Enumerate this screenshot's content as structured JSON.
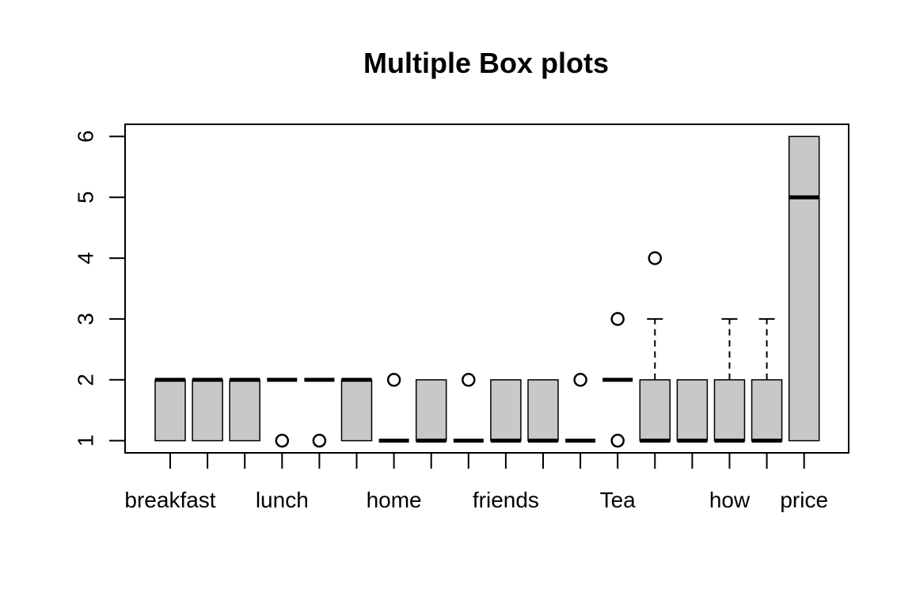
{
  "chart_data": {
    "type": "boxplot",
    "title": "Multiple Box plots",
    "xlabel": "",
    "ylabel": "",
    "ylim": [
      0.8,
      6.2
    ],
    "yticks": [
      1,
      2,
      3,
      4,
      5,
      6
    ],
    "box_fill": "#c8c8c8",
    "x_tick_labels": [
      {
        "position": 1,
        "text": "breakfast"
      },
      {
        "position": 4,
        "text": "lunch"
      },
      {
        "position": 7,
        "text": "home"
      },
      {
        "position": 10,
        "text": "friends"
      },
      {
        "position": 13,
        "text": "Tea"
      },
      {
        "position": 16,
        "text": "how"
      },
      {
        "position": 18,
        "text": "price"
      }
    ],
    "boxes": [
      {
        "position": 1,
        "min": 1,
        "q1": 1,
        "median": 2,
        "q3": 2,
        "max": 2,
        "outliers": []
      },
      {
        "position": 2,
        "min": 1,
        "q1": 1,
        "median": 2,
        "q3": 2,
        "max": 2,
        "outliers": []
      },
      {
        "position": 3,
        "min": 1,
        "q1": 1,
        "median": 2,
        "q3": 2,
        "max": 2,
        "outliers": []
      },
      {
        "position": 4,
        "min": 2,
        "q1": 2,
        "median": 2,
        "q3": 2,
        "max": 2,
        "outliers": [
          1
        ]
      },
      {
        "position": 5,
        "min": 2,
        "q1": 2,
        "median": 2,
        "q3": 2,
        "max": 2,
        "outliers": [
          1
        ]
      },
      {
        "position": 6,
        "min": 1,
        "q1": 1,
        "median": 2,
        "q3": 2,
        "max": 2,
        "outliers": []
      },
      {
        "position": 7,
        "min": 1,
        "q1": 1,
        "median": 1,
        "q3": 1,
        "max": 1,
        "outliers": [
          2
        ]
      },
      {
        "position": 8,
        "min": 1,
        "q1": 1,
        "median": 1,
        "q3": 2,
        "max": 2,
        "outliers": []
      },
      {
        "position": 9,
        "min": 1,
        "q1": 1,
        "median": 1,
        "q3": 1,
        "max": 1,
        "outliers": [
          2
        ]
      },
      {
        "position": 10,
        "min": 1,
        "q1": 1,
        "median": 1,
        "q3": 2,
        "max": 2,
        "outliers": []
      },
      {
        "position": 11,
        "min": 1,
        "q1": 1,
        "median": 1,
        "q3": 2,
        "max": 2,
        "outliers": []
      },
      {
        "position": 12,
        "min": 1,
        "q1": 1,
        "median": 1,
        "q3": 1,
        "max": 1,
        "outliers": [
          2
        ]
      },
      {
        "position": 13,
        "min": 2,
        "q1": 2,
        "median": 2,
        "q3": 2,
        "max": 2,
        "outliers": [
          1,
          3
        ]
      },
      {
        "position": 14,
        "min": 1,
        "q1": 1,
        "median": 1,
        "q3": 2,
        "max": 3,
        "outliers": [
          4
        ]
      },
      {
        "position": 15,
        "min": 1,
        "q1": 1,
        "median": 1,
        "q3": 2,
        "max": 2,
        "outliers": []
      },
      {
        "position": 16,
        "min": 1,
        "q1": 1,
        "median": 1,
        "q3": 2,
        "max": 3,
        "outliers": []
      },
      {
        "position": 17,
        "min": 1,
        "q1": 1,
        "median": 1,
        "q3": 2,
        "max": 3,
        "outliers": []
      },
      {
        "position": 18,
        "min": 1,
        "q1": 1,
        "median": 5,
        "q3": 6,
        "max": 6,
        "outliers": []
      }
    ]
  }
}
